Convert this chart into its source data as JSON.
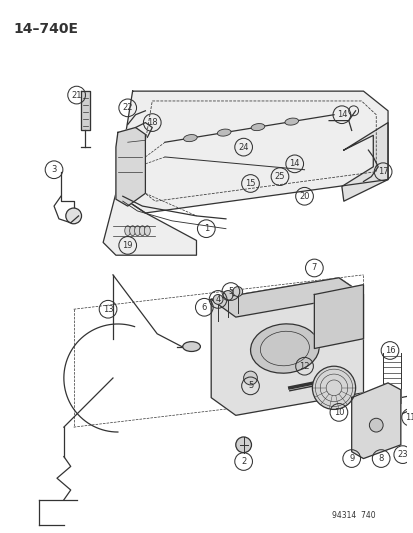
{
  "title": "14–740E",
  "background_color": "#ffffff",
  "fig_width": 4.14,
  "fig_height": 5.33,
  "watermark": "94314  740",
  "gray": "#333333",
  "light_gray": "#bbbbbb"
}
